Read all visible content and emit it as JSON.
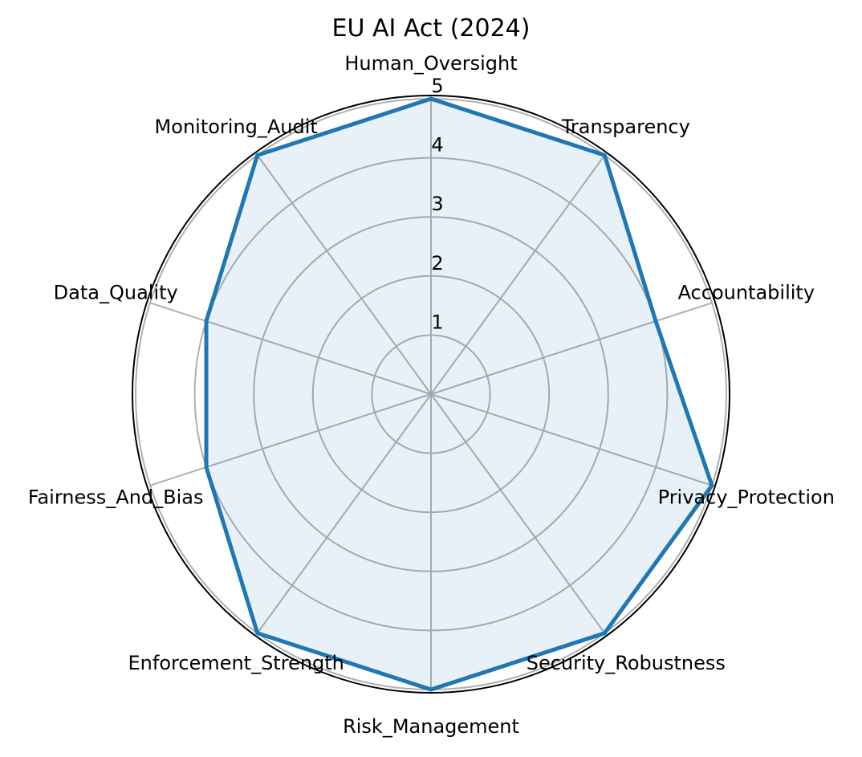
{
  "chart_data": {
    "type": "radar",
    "title": "EU AI Act (2024)",
    "categories": [
      "Human_Oversight",
      "Transparency",
      "Accountability",
      "Privacy_Protection",
      "Security_Robustness",
      "Risk_Management",
      "Enforcement_Strength",
      "Fairness_And_Bias",
      "Data_Quality",
      "Monitoring_Audit"
    ],
    "values": [
      5,
      5,
      4,
      5,
      5,
      5,
      5,
      4,
      4,
      5
    ],
    "rlim": [
      0,
      5
    ],
    "rticks": [
      1,
      2,
      3,
      4,
      5
    ],
    "grid": true,
    "colors": {
      "line": "#1f77b4",
      "fill": "#1f77b4",
      "grid": "#b0b0b0",
      "text": "#000000"
    }
  }
}
